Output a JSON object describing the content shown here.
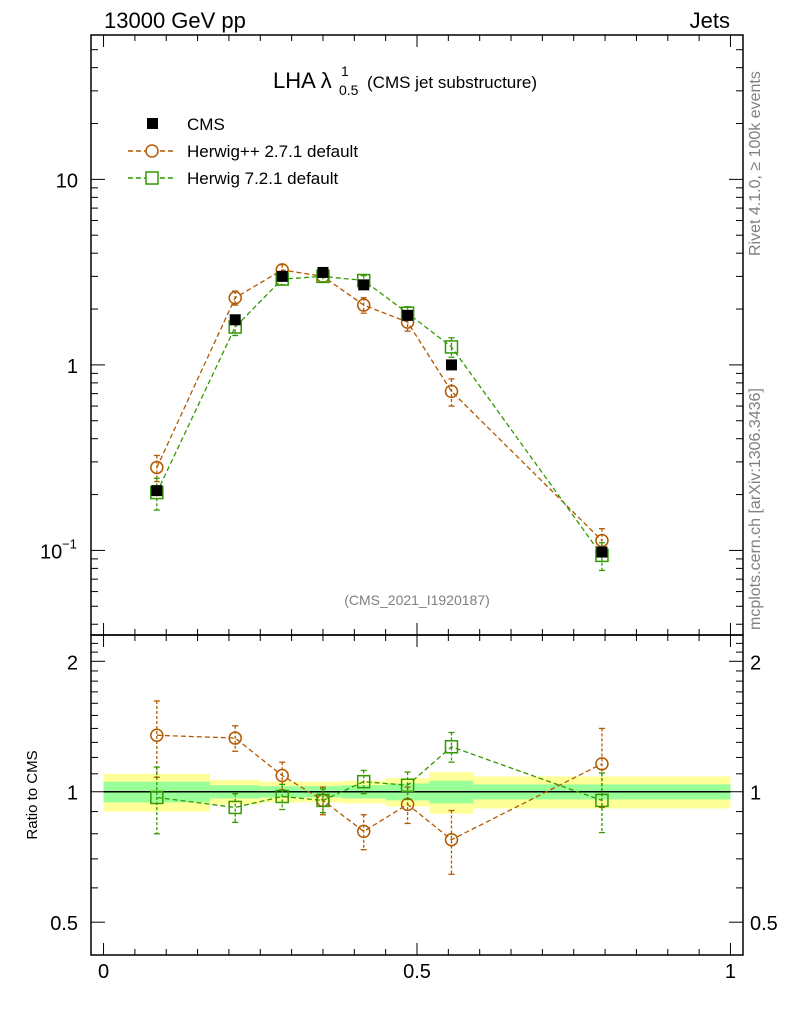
{
  "header": {
    "left": "13000 GeV pp",
    "right": "Jets"
  },
  "side_labels": {
    "top": "Rivet 4.1.0, ≥ 100k events",
    "bottom": "mcplots.cern.ch [arXiv:1306.3436]"
  },
  "chart_data": {
    "type": "scatter",
    "title": {
      "main": "LHA λ",
      "sup": "1",
      "sub": "0.5",
      "suffix": "(CMS jet substructure)"
    },
    "analysis_id": "(CMS_2021_I1920187)",
    "main_panel": {
      "yscale": "log",
      "ylim": [
        0.035,
        60
      ],
      "yticks": [
        {
          "value": 0.1,
          "label": "10",
          "exp": "−1"
        },
        {
          "value": 1,
          "label": "1"
        },
        {
          "value": 10,
          "label": "10"
        }
      ],
      "series": [
        {
          "name": "CMS",
          "marker": "filled-square",
          "color": "#000000",
          "x": [
            0.085,
            0.21,
            0.285,
            0.35,
            0.415,
            0.485,
            0.555,
            0.795
          ],
          "y": [
            0.21,
            1.75,
            3.0,
            3.15,
            2.7,
            1.85,
            1.0,
            0.098
          ]
        },
        {
          "name": "Herwig++ 2.7.1 default",
          "marker": "open-circle",
          "color": "#b35900",
          "x": [
            0.085,
            0.21,
            0.285,
            0.35,
            0.415,
            0.485,
            0.555,
            0.795
          ],
          "y": [
            0.28,
            2.3,
            3.25,
            3.0,
            2.1,
            1.7,
            0.72,
            0.113
          ],
          "yerr": [
            0.045,
            0.2,
            0.22,
            0.2,
            0.2,
            0.18,
            0.12,
            0.018
          ]
        },
        {
          "name": "Herwig 7.2.1 default",
          "marker": "open-square",
          "color": "#339900",
          "x": [
            0.085,
            0.21,
            0.285,
            0.35,
            0.415,
            0.485,
            0.555,
            0.795
          ],
          "y": [
            0.205,
            1.6,
            2.9,
            3.0,
            2.85,
            1.9,
            1.25,
            0.094
          ],
          "yerr": [
            0.04,
            0.16,
            0.2,
            0.2,
            0.18,
            0.16,
            0.15,
            0.016
          ]
        }
      ]
    },
    "ratio_panel": {
      "ylabel": "Ratio to CMS",
      "ylim": [
        0.42,
        2.3
      ],
      "yticks": [
        {
          "value": 0.5,
          "label": "0.5"
        },
        {
          "value": 1,
          "label": "1"
        },
        {
          "value": 2,
          "label": "2"
        }
      ],
      "bands": {
        "bins": [
          0.0,
          0.17,
          0.25,
          0.33,
          0.38,
          0.45,
          0.52,
          0.59,
          1.0
        ],
        "inner": [
          0.055,
          0.035,
          0.03,
          0.03,
          0.035,
          0.045,
          0.06,
          0.04
        ],
        "outer": [
          0.1,
          0.065,
          0.055,
          0.055,
          0.06,
          0.075,
          0.11,
          0.085
        ]
      },
      "series": [
        {
          "name": "Herwig++ 2.7.1 default",
          "x": [
            0.085,
            0.21,
            0.285,
            0.35,
            0.415,
            0.485,
            0.555,
            0.795
          ],
          "y": [
            1.35,
            1.33,
            1.09,
            0.955,
            0.81,
            0.935,
            0.775,
            1.16
          ],
          "yerr": [
            0.27,
            0.09,
            0.08,
            0.07,
            0.075,
            0.09,
            0.13,
            0.24
          ]
        },
        {
          "name": "Herwig 7.2.1 default",
          "x": [
            0.085,
            0.21,
            0.285,
            0.35,
            0.415,
            0.485,
            0.555,
            0.795
          ],
          "y": [
            0.97,
            0.92,
            0.975,
            0.955,
            1.055,
            1.035,
            1.27,
            0.955
          ],
          "yerr": [
            0.17,
            0.07,
            0.065,
            0.06,
            0.065,
            0.075,
            0.1,
            0.15
          ]
        }
      ]
    },
    "xaxis": {
      "xlim": [
        -0.02,
        1.02
      ],
      "ticks": [
        {
          "value": 0,
          "label": "0"
        },
        {
          "value": 0.5,
          "label": "0.5"
        },
        {
          "value": 1,
          "label": "1"
        }
      ]
    }
  }
}
